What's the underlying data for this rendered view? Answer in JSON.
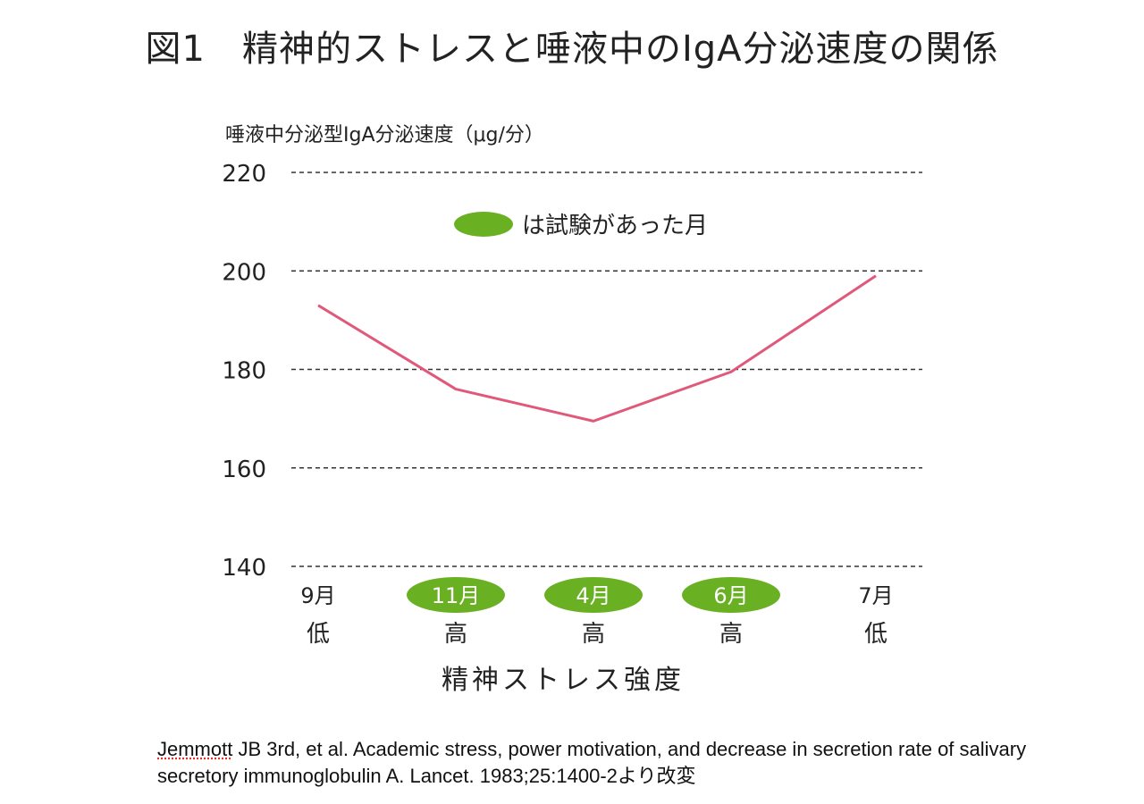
{
  "title": "図1　精神的ストレスと唾液中のIgA分泌速度の関係",
  "colors": {
    "line": "#e0587a",
    "exam": "#6ab023",
    "grid": "#333333"
  },
  "chart_data": {
    "type": "line",
    "title": "図1　精神的ストレスと唾液中のIgA分泌速度の関係",
    "ylabel": "唾液中分泌型IgA分泌速度（μg/分）",
    "xlabel": "精神ストレス強度",
    "ylim": [
      140,
      220
    ],
    "yticks": [
      220,
      200,
      180,
      160,
      140
    ],
    "grid": "horizontal dashed",
    "categories": [
      "9月",
      "11月",
      "4月",
      "6月",
      "7月"
    ],
    "stress_levels": [
      "低",
      "高",
      "高",
      "高",
      "低"
    ],
    "exam_months": [
      false,
      true,
      true,
      true,
      false
    ],
    "series": [
      {
        "values": [
          193,
          176,
          169.5,
          179.5,
          199
        ]
      }
    ],
    "legend": {
      "label": "は試験があった月",
      "position": "top-center"
    }
  },
  "citation": {
    "author": "Jemmott",
    "text": " JB 3rd, et al. Academic stress, power motivation, and decrease in secretion rate of salivary secretory immunoglobulin A. Lancet. 1983;25:1400-2より改変"
  }
}
